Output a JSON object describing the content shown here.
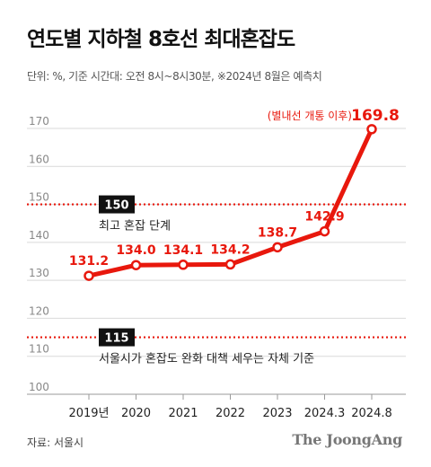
{
  "title": "연도별 지하철 8호선 최대혼잡도",
  "subtitle": "단위: %, 기준 시간대: 오전 8시~8시30분, ※2024년 8월은 예측치",
  "source": "자료: 서울시",
  "brand": "The JoongAng",
  "colors": {
    "accent": "#e8180d",
    "grid": "#d9d9d9",
    "axis": "#9a9a9a",
    "text": "#222222",
    "badge_bg": "#111111",
    "badge_text": "#ffffff"
  },
  "chart_data": {
    "type": "line",
    "title": "연도별 지하철 8호선 최대혼잡도",
    "xlabel": "",
    "ylabel": "",
    "categories": [
      "2019년",
      "2020",
      "2021",
      "2022",
      "2023",
      "2024.3",
      "2024.8"
    ],
    "series": [
      {
        "values": [
          131.2,
          134.0,
          134.1,
          134.2,
          138.7,
          142.9,
          169.8
        ]
      }
    ],
    "value_labels": [
      "131.2",
      "134.0",
      "134.1",
      "134.2",
      "138.7",
      "142.9",
      "169.8"
    ],
    "ylim": [
      100,
      170
    ],
    "yticks": [
      100,
      110,
      120,
      130,
      140,
      150,
      160,
      170
    ],
    "ytick_labels": [
      "100",
      "110",
      "120",
      "130",
      "140",
      "150",
      "160",
      "170"
    ],
    "grid": true,
    "annotations": [
      {
        "text": "(별내선 개통 이후)",
        "category": "2024.8"
      }
    ],
    "reference_lines": [
      {
        "value": 150,
        "label": "150",
        "caption": "최고 혼잡 단계"
      },
      {
        "value": 115,
        "label": "115",
        "caption": "서울시가 혼잡도 완화 대책 세우는 자체 기준"
      }
    ]
  }
}
